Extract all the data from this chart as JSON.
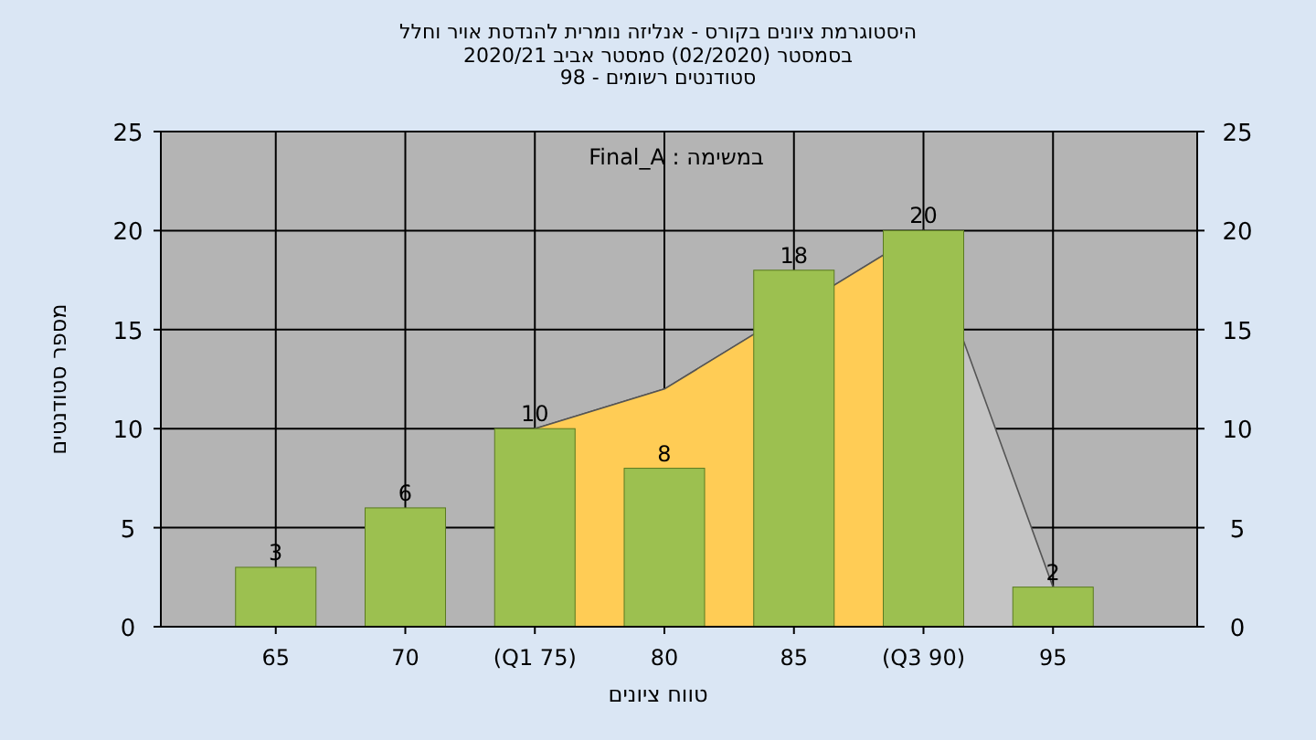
{
  "chart_data": {
    "type": "bar",
    "title": "היסטוגרמת ציונים בקורס - אנליזה נומרית להנדסת אויר וחלל",
    "subtitle": [
      "בסמסטר  (02/2020)  סמסטר אביב 2020/21",
      "סטודנטים רשומים - 98"
    ],
    "xlabel": "טווח ציונים",
    "ylabel": "מספר סטודנטים",
    "annotations": [
      "במשימה : Final_A"
    ],
    "categories": [
      "65",
      "70",
      "(Q1 75)",
      "80",
      "85",
      "(Q3 90)",
      "95"
    ],
    "series": [
      {
        "type": "area",
        "color": "#c4c4c4",
        "values": [
          null,
          null,
          10,
          12,
          null,
          20,
          2
        ]
      },
      {
        "type": "area",
        "color": "#ffcc55",
        "values": [
          null,
          null,
          10,
          12,
          null,
          20,
          null
        ]
      },
      {
        "color": "#9cc050",
        "values": [
          3,
          6,
          10,
          8,
          18,
          20,
          2
        ],
        "value_labels": [
          "3",
          "6",
          "10",
          "8",
          "18",
          "20",
          "2"
        ]
      }
    ],
    "ylim": [
      0,
      25
    ],
    "yticks": [
      0,
      5,
      10,
      15,
      20,
      25
    ],
    "y2lim": [
      0,
      25
    ],
    "y2ticks": [
      0,
      5,
      10,
      15,
      20,
      25
    ],
    "grid": true
  }
}
